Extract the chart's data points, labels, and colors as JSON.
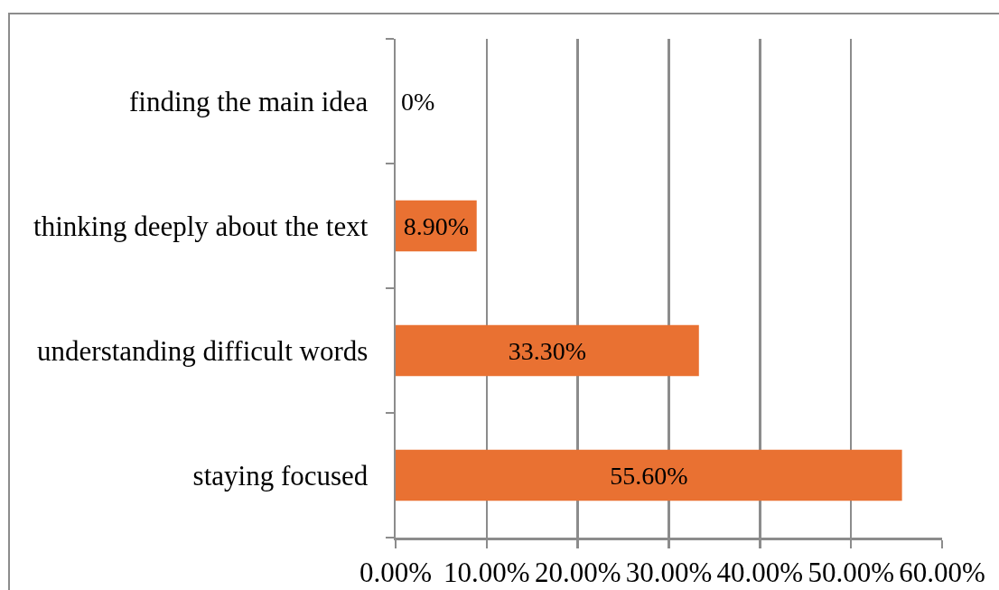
{
  "chart_data": {
    "type": "bar",
    "orientation": "horizontal",
    "categories": [
      "finding the main idea",
      "thinking deeply about the text",
      "understanding difficult words",
      "staying focused"
    ],
    "values": [
      0,
      8.9,
      33.3,
      55.6
    ],
    "color": "#e97132",
    "value_labels": [
      "0%",
      "8.90%",
      "33.30%",
      "55.60%"
    ],
    "xlim": [
      0,
      60
    ],
    "xticks": [
      {
        "value": 0,
        "label": "0.00%"
      },
      {
        "value": 10,
        "label": "10.00%"
      },
      {
        "value": 20,
        "label": "20.00%"
      },
      {
        "value": 30,
        "label": "30.00%"
      },
      {
        "value": 40,
        "label": "40.00%"
      },
      {
        "value": 50,
        "label": "50.00%"
      },
      {
        "value": 60,
        "label": "60.00%"
      }
    ],
    "grid": "x"
  }
}
